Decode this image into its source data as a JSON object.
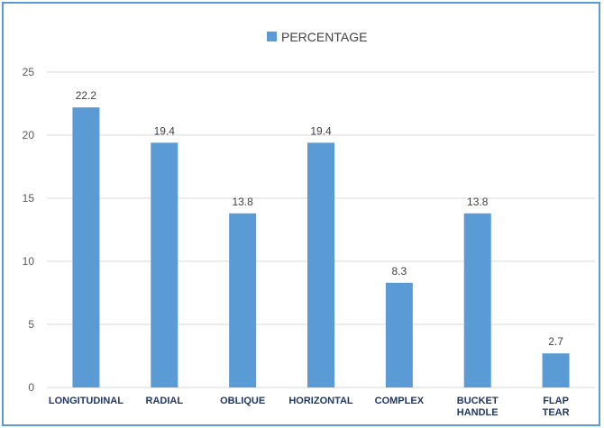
{
  "chart_data": {
    "type": "bar",
    "categories": [
      "LONGITUDINAL",
      "RADIAL",
      "OBLIQUE",
      "HORIZONTAL",
      "COMPLEX",
      "BUCKET HANDLE",
      "FLAP TEAR"
    ],
    "series": [
      {
        "name": "PERCENTAGE",
        "values": [
          22.2,
          19.4,
          13.8,
          19.4,
          8.3,
          13.8,
          2.7
        ],
        "color": "#5b9bd5"
      }
    ],
    "yticks": [
      0,
      5,
      10,
      15,
      20,
      25
    ],
    "ylim": [
      0,
      25
    ],
    "grid": true,
    "legend_position": "top-center",
    "title": "",
    "xlabel": "",
    "ylabel": ""
  }
}
